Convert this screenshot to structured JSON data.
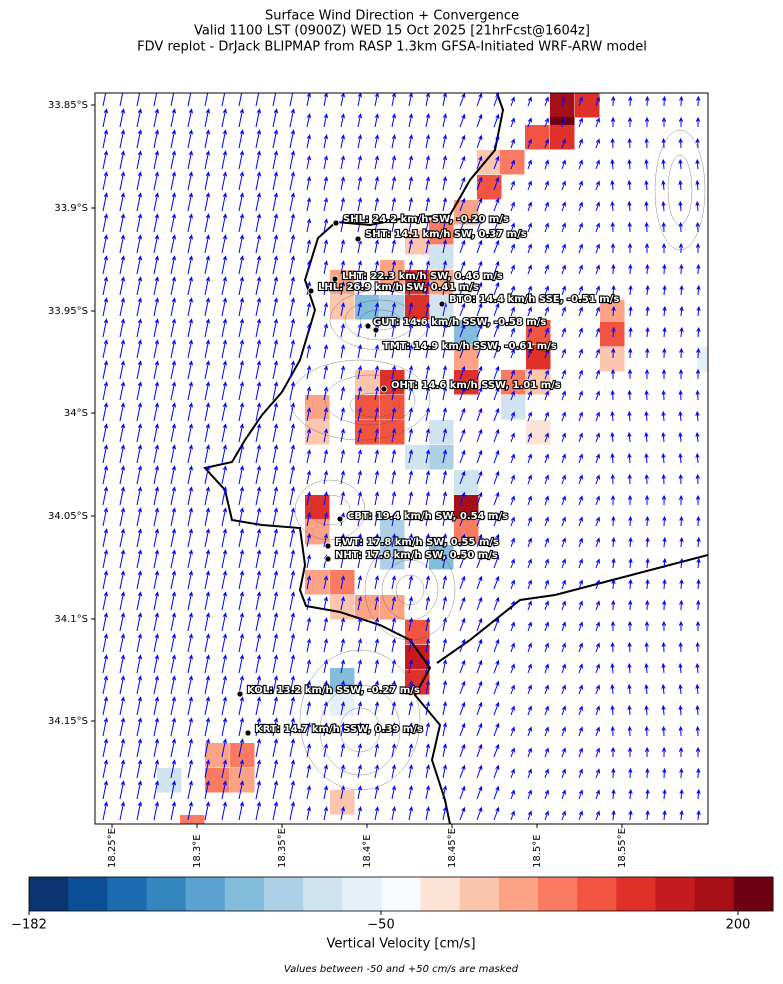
{
  "header": {
    "title_lines": [
      "Surface Wind Direction + Convergence",
      "Valid 1100 LST (0900Z) WED 15 Oct 2025 [21hrFcst@1604z]",
      "FDV replot - DrJack BLIPMAP from RASP 1.3km GFSA-Initiated WRF-ARW model"
    ]
  },
  "map": {
    "x_ticks": [
      "18.25°E",
      "18.3°E",
      "18.35°E",
      "18.4°E",
      "18.45°E",
      "18.5°E",
      "18.55°E"
    ],
    "y_ticks": [
      "33.85°S",
      "33.9°S",
      "33.95°S",
      "34°S",
      "34.05°S",
      "34.1°S",
      "34.15°S"
    ],
    "stations": [
      "SHL: 24.2 km/h SW, -0.20 m/s",
      "SHT: 14.1 km/h SW, 0.37 m/s",
      "LHT: 22.3 km/h SW, 0.46 m/s",
      "LHL: 26.9 km/h SW, 0.41 m/s",
      "BTO: 14.4 km/h SSE, -0.51 m/s",
      "GUT: 14.6 km/h SSW, -0.58 m/s",
      "TMT: 14.9 km/h SSW, -0.61 m/s",
      "OHT: 14.6 km/h SSW, 1.01 m/s",
      "CBT: 19.4 km/h SW, 0.54 m/s",
      "FWT: 17.8 km/h SW, 0.55 m/s",
      "NHT: 17.6 km/h SW, 0.50 m/s",
      "KOL: 13.2 km/h SSW, -0.27 m/s",
      "KRT: 14.7 km/h SSW, 0.39 m/s"
    ]
  },
  "colorbar": {
    "tick_labels": [
      "−182",
      "−50",
      "200"
    ],
    "label": "Vertical Velocity [cm/s]",
    "colors": [
      "#0b3470",
      "#0c4f96",
      "#1d6bb0",
      "#3486bf",
      "#5aa2cf",
      "#84bcdb",
      "#aed0e6",
      "#cfe3f0",
      "#e6f0f8",
      "#f8fbfe",
      "#fde2d6",
      "#fcc5ae",
      "#fca386",
      "#f97c62",
      "#f15441",
      "#e0302a",
      "#c51a1f",
      "#a70f17",
      "#6e0111"
    ]
  },
  "footnote": "Values between -50 and +50 cm/s are masked"
}
